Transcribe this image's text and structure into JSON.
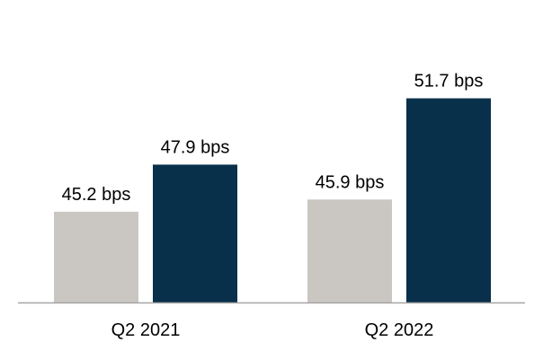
{
  "chart_data": {
    "type": "bar",
    "categories": [
      "Q2 2021",
      "Q2 2022"
    ],
    "series": [
      {
        "values": [
          45.2,
          45.9
        ],
        "labels": [
          "45.2 bps",
          "45.9 bps"
        ],
        "color": "#CAC7C2"
      },
      {
        "values": [
          47.9,
          51.7
        ],
        "labels": [
          "47.9 bps",
          "51.7 bps"
        ],
        "color": "#08304A"
      }
    ],
    "ylim": [
      40,
      53.5
    ],
    "grid": false,
    "axis_color": "#A6A6A6"
  }
}
